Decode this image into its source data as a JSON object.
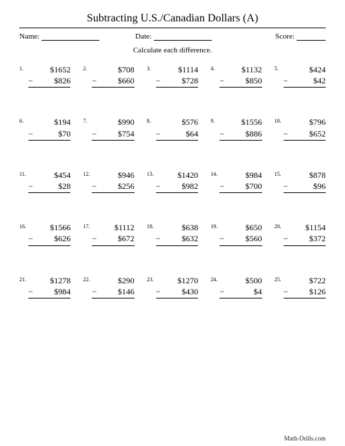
{
  "title": "Subtracting U.S./Canadian Dollars (A)",
  "meta": {
    "name_label": "Name:",
    "date_label": "Date:",
    "score_label": "Score:"
  },
  "instructions": "Calculate each difference.",
  "problems": [
    {
      "n": "1.",
      "top": "$1652",
      "bot": "$826"
    },
    {
      "n": "2.",
      "top": "$708",
      "bot": "$660"
    },
    {
      "n": "3.",
      "top": "$1114",
      "bot": "$728"
    },
    {
      "n": "4.",
      "top": "$1132",
      "bot": "$850"
    },
    {
      "n": "5.",
      "top": "$424",
      "bot": "$42"
    },
    {
      "n": "6.",
      "top": "$194",
      "bot": "$70"
    },
    {
      "n": "7.",
      "top": "$990",
      "bot": "$754"
    },
    {
      "n": "8.",
      "top": "$576",
      "bot": "$64"
    },
    {
      "n": "9.",
      "top": "$1556",
      "bot": "$886"
    },
    {
      "n": "10.",
      "top": "$796",
      "bot": "$652"
    },
    {
      "n": "11.",
      "top": "$454",
      "bot": "$28"
    },
    {
      "n": "12.",
      "top": "$946",
      "bot": "$256"
    },
    {
      "n": "13.",
      "top": "$1420",
      "bot": "$982"
    },
    {
      "n": "14.",
      "top": "$984",
      "bot": "$700"
    },
    {
      "n": "15.",
      "top": "$878",
      "bot": "$96"
    },
    {
      "n": "16.",
      "top": "$1566",
      "bot": "$626"
    },
    {
      "n": "17.",
      "top": "$1112",
      "bot": "$672"
    },
    {
      "n": "18.",
      "top": "$638",
      "bot": "$632"
    },
    {
      "n": "19.",
      "top": "$650",
      "bot": "$560"
    },
    {
      "n": "20.",
      "top": "$1154",
      "bot": "$372"
    },
    {
      "n": "21.",
      "top": "$1278",
      "bot": "$984"
    },
    {
      "n": "22.",
      "top": "$290",
      "bot": "$146"
    },
    {
      "n": "23.",
      "top": "$1270",
      "bot": "$430"
    },
    {
      "n": "24.",
      "top": "$500",
      "bot": "$4"
    },
    {
      "n": "25.",
      "top": "$722",
      "bot": "$126"
    }
  ],
  "minus_sign": "−",
  "footer": "Math-Drills.com",
  "layout": {
    "blank_widths": {
      "name": 84,
      "date": 84,
      "score": 42
    }
  },
  "colors": {
    "text": "#000000",
    "background": "#ffffff"
  }
}
